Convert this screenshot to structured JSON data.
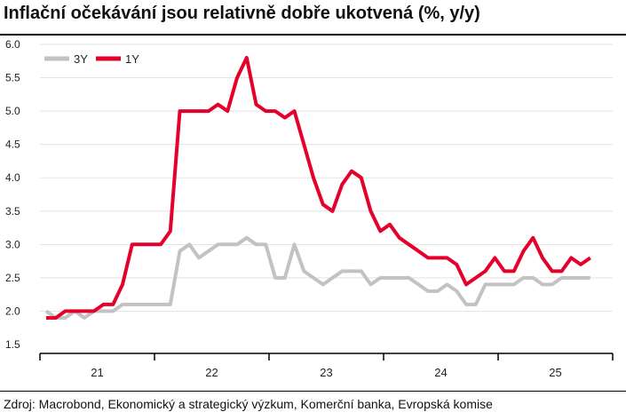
{
  "title": "Inflační očekávání jsou relativně dobře ukotvená (%, y/y)",
  "source": "Zdroj: Macrobond, Ekonomický a strategický výzkum, Komerční banka, Evropská komise",
  "chart_data": {
    "type": "line",
    "title": "Inflační očekávání jsou relativně dobře ukotvená (%, y/y)",
    "ylim": [
      1.5,
      6.0
    ],
    "yticks": [
      "6.0",
      "5.5",
      "5.0",
      "4.5",
      "4.0",
      "3.5",
      "3.0",
      "2.5",
      "2.0",
      "1.5"
    ],
    "xticks": [
      "21",
      "22",
      "23",
      "24",
      "25"
    ],
    "grid": true,
    "legend": "top-left",
    "series": [
      {
        "name": "3Y",
        "color": "#c3c1c1",
        "values": [
          2.0,
          1.9,
          1.9,
          2.0,
          1.9,
          2.0,
          2.0,
          2.0,
          2.1,
          2.1,
          2.1,
          2.1,
          2.1,
          2.1,
          2.9,
          3.0,
          2.8,
          2.9,
          3.0,
          3.0,
          3.0,
          3.1,
          3.0,
          3.0,
          2.5,
          2.5,
          3.0,
          2.6,
          2.5,
          2.4,
          2.5,
          2.6,
          2.6,
          2.6,
          2.4,
          2.5,
          2.5,
          2.5,
          2.5,
          2.4,
          2.3,
          2.3,
          2.4,
          2.3,
          2.1,
          2.1,
          2.4,
          2.4,
          2.4,
          2.4,
          2.5,
          2.5,
          2.4,
          2.4,
          2.5,
          2.5,
          2.5,
          2.5
        ]
      },
      {
        "name": "1Y",
        "color": "#e4002b",
        "values": [
          1.9,
          1.9,
          2.0,
          2.0,
          2.0,
          2.0,
          2.1,
          2.1,
          2.4,
          3.0,
          3.0,
          3.0,
          3.0,
          3.2,
          5.0,
          5.0,
          5.0,
          5.0,
          5.1,
          5.0,
          5.5,
          5.8,
          5.1,
          5.0,
          5.0,
          4.9,
          5.0,
          4.5,
          4.0,
          3.6,
          3.5,
          3.9,
          4.1,
          4.0,
          3.5,
          3.2,
          3.3,
          3.1,
          3.0,
          2.9,
          2.8,
          2.8,
          2.8,
          2.7,
          2.4,
          2.5,
          2.6,
          2.8,
          2.6,
          2.6,
          2.9,
          3.1,
          2.8,
          2.6,
          2.6,
          2.8,
          2.7,
          2.8
        ]
      }
    ]
  }
}
